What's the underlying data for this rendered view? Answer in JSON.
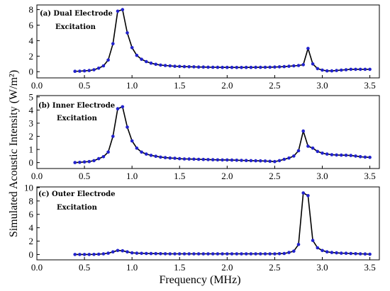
{
  "figure": {
    "ylabel": "Simulated Acoustic Intensity (W/m²)",
    "xlabel": "Frequency (MHz)",
    "line_color": "#000000",
    "marker_color": "#2222cc"
  },
  "chart_data": [
    {
      "type": "line",
      "label_line1": "(a) Dual Electrode",
      "label_line2": "Excitation",
      "ylim": [
        -0.8,
        8.6
      ],
      "yticks": [
        "0",
        "2",
        "4",
        "6",
        "8"
      ],
      "xlim": [
        0.0,
        3.6
      ],
      "xticks": [
        "0.0",
        "0.5",
        "1.0",
        "1.5",
        "2.0",
        "2.5",
        "3.0",
        "3.5"
      ],
      "grid": false,
      "x": [
        0.4,
        0.45,
        0.5,
        0.55,
        0.6,
        0.65,
        0.7,
        0.75,
        0.8,
        0.85,
        0.9,
        0.95,
        1.0,
        1.05,
        1.1,
        1.15,
        1.2,
        1.25,
        1.3,
        1.35,
        1.4,
        1.45,
        1.5,
        1.55,
        1.6,
        1.65,
        1.7,
        1.75,
        1.8,
        1.85,
        1.9,
        1.95,
        2.0,
        2.05,
        2.1,
        2.15,
        2.2,
        2.25,
        2.3,
        2.35,
        2.4,
        2.45,
        2.5,
        2.55,
        2.6,
        2.65,
        2.7,
        2.75,
        2.8,
        2.85,
        2.9,
        2.95,
        3.0,
        3.05,
        3.1,
        3.15,
        3.2,
        3.25,
        3.3,
        3.35,
        3.4,
        3.45,
        3.5
      ],
      "y": [
        0.05,
        0.07,
        0.1,
        0.15,
        0.25,
        0.45,
        0.75,
        1.5,
        3.6,
        7.8,
        8.0,
        5.0,
        3.1,
        2.1,
        1.6,
        1.3,
        1.1,
        0.95,
        0.85,
        0.8,
        0.75,
        0.7,
        0.68,
        0.65,
        0.63,
        0.62,
        0.6,
        0.6,
        0.58,
        0.57,
        0.56,
        0.55,
        0.55,
        0.55,
        0.54,
        0.54,
        0.55,
        0.55,
        0.56,
        0.56,
        0.57,
        0.58,
        0.6,
        0.62,
        0.65,
        0.7,
        0.75,
        0.8,
        0.9,
        3.0,
        1.0,
        0.4,
        0.2,
        0.1,
        0.1,
        0.15,
        0.2,
        0.25,
        0.3,
        0.3,
        0.3,
        0.3,
        0.3
      ]
    },
    {
      "type": "line",
      "label_line1": "(b) Inner Electrode",
      "label_line2": "Excitation",
      "ylim": [
        -0.45,
        5.1
      ],
      "yticks": [
        "0",
        "1",
        "2",
        "3",
        "4",
        "5"
      ],
      "xlim": [
        0.0,
        3.6
      ],
      "xticks": [
        "0.0",
        "0.5",
        "1.0",
        "1.5",
        "2.0",
        "2.5",
        "3.0",
        "3.5"
      ],
      "grid": false,
      "x": [
        0.4,
        0.45,
        0.5,
        0.55,
        0.6,
        0.65,
        0.7,
        0.75,
        0.8,
        0.85,
        0.9,
        0.95,
        1.0,
        1.05,
        1.1,
        1.15,
        1.2,
        1.25,
        1.3,
        1.35,
        1.4,
        1.45,
        1.5,
        1.55,
        1.6,
        1.65,
        1.7,
        1.75,
        1.8,
        1.85,
        1.9,
        1.95,
        2.0,
        2.05,
        2.1,
        2.15,
        2.2,
        2.25,
        2.3,
        2.35,
        2.4,
        2.45,
        2.5,
        2.55,
        2.6,
        2.65,
        2.7,
        2.75,
        2.8,
        2.85,
        2.9,
        2.95,
        3.0,
        3.05,
        3.1,
        3.15,
        3.2,
        3.25,
        3.3,
        3.35,
        3.4,
        3.45,
        3.5
      ],
      "y": [
        0.0,
        0.02,
        0.05,
        0.08,
        0.15,
        0.3,
        0.45,
        0.8,
        2.0,
        4.1,
        4.25,
        2.7,
        1.65,
        1.1,
        0.8,
        0.65,
        0.55,
        0.48,
        0.42,
        0.38,
        0.35,
        0.33,
        0.3,
        0.28,
        0.27,
        0.26,
        0.25,
        0.24,
        0.23,
        0.22,
        0.21,
        0.2,
        0.2,
        0.19,
        0.18,
        0.17,
        0.16,
        0.15,
        0.14,
        0.13,
        0.12,
        0.1,
        0.08,
        0.15,
        0.25,
        0.35,
        0.5,
        0.9,
        2.4,
        1.25,
        1.1,
        0.85,
        0.72,
        0.65,
        0.6,
        0.58,
        0.57,
        0.56,
        0.54,
        0.5,
        0.45,
        0.42,
        0.4
      ]
    },
    {
      "type": "line",
      "label_line1": "(c) Outer Electrode",
      "label_line2": "Excitation",
      "ylim": [
        -0.8,
        10.1
      ],
      "yticks": [
        "0",
        "2",
        "4",
        "6",
        "8",
        "10"
      ],
      "xlim": [
        0.0,
        3.6
      ],
      "xticks": [
        "0.0",
        "0.5",
        "1.0",
        "1.5",
        "2.0",
        "2.5",
        "3.0",
        "3.5"
      ],
      "grid": false,
      "x": [
        0.4,
        0.45,
        0.5,
        0.55,
        0.6,
        0.65,
        0.7,
        0.75,
        0.8,
        0.85,
        0.9,
        0.95,
        1.0,
        1.05,
        1.1,
        1.15,
        1.2,
        1.25,
        1.3,
        1.35,
        1.4,
        1.45,
        1.5,
        1.55,
        1.6,
        1.65,
        1.7,
        1.75,
        1.8,
        1.85,
        1.9,
        1.95,
        2.0,
        2.05,
        2.1,
        2.15,
        2.2,
        2.25,
        2.3,
        2.35,
        2.4,
        2.45,
        2.5,
        2.55,
        2.6,
        2.65,
        2.7,
        2.75,
        2.8,
        2.85,
        2.9,
        2.95,
        3.0,
        3.05,
        3.1,
        3.15,
        3.2,
        3.25,
        3.3,
        3.35,
        3.4,
        3.45,
        3.5
      ],
      "y": [
        0.0,
        0.0,
        0.0,
        0.0,
        0.02,
        0.05,
        0.1,
        0.2,
        0.4,
        0.6,
        0.55,
        0.4,
        0.25,
        0.2,
        0.17,
        0.15,
        0.14,
        0.13,
        0.12,
        0.11,
        0.1,
        0.1,
        0.1,
        0.1,
        0.1,
        0.1,
        0.1,
        0.1,
        0.1,
        0.1,
        0.1,
        0.1,
        0.1,
        0.1,
        0.1,
        0.1,
        0.1,
        0.1,
        0.1,
        0.1,
        0.1,
        0.1,
        0.1,
        0.12,
        0.15,
        0.3,
        0.5,
        1.5,
        9.2,
        8.8,
        2.1,
        1.0,
        0.6,
        0.4,
        0.3,
        0.25,
        0.2,
        0.18,
        0.15,
        0.12,
        0.1,
        0.08,
        0.05
      ]
    }
  ]
}
